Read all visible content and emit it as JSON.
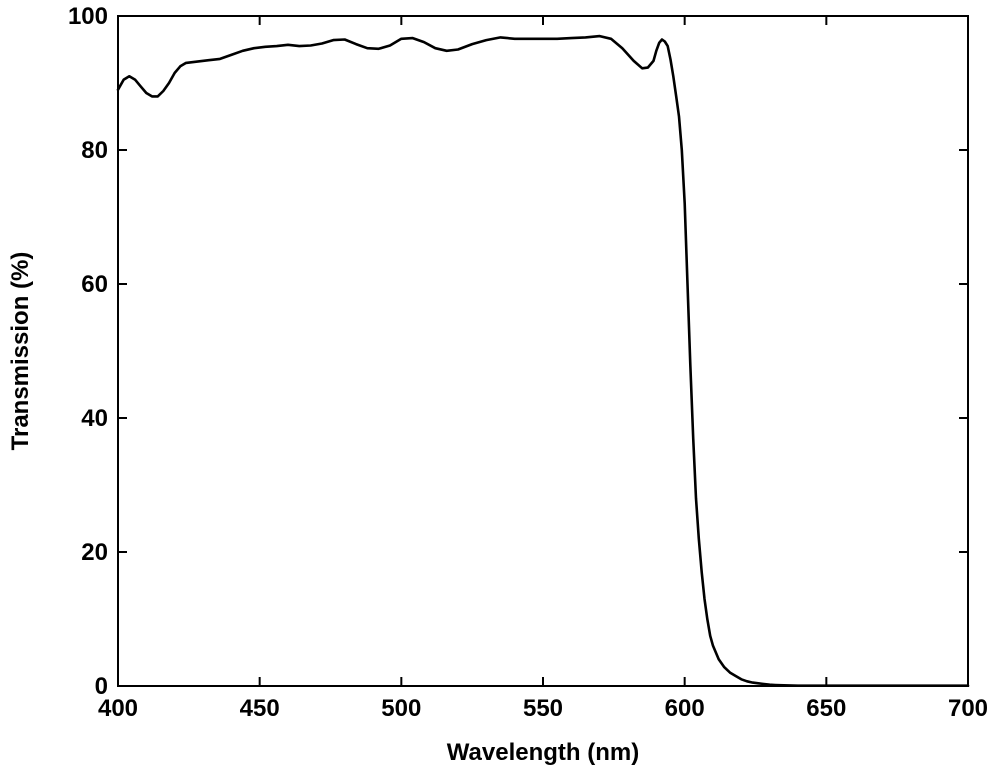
{
  "chart_data": {
    "type": "line",
    "title": "",
    "xlabel": "Wavelength (nm)",
    "ylabel": "Transmission (%)",
    "xlim": [
      400,
      700
    ],
    "ylim": [
      0,
      100
    ],
    "xticks": [
      400,
      450,
      500,
      550,
      600,
      650,
      700
    ],
    "yticks": [
      0,
      20,
      40,
      60,
      80,
      100
    ],
    "grid": false,
    "legend": "none",
    "colors": {
      "line": "#000000",
      "axes": "#000000",
      "background": "#ffffff"
    },
    "series": [
      {
        "x": [
          400,
          402,
          404,
          406,
          408,
          410,
          412,
          414,
          416,
          418,
          420,
          422,
          424,
          428,
          432,
          436,
          440,
          444,
          448,
          452,
          456,
          460,
          464,
          468,
          472,
          476,
          480,
          484,
          488,
          492,
          496,
          500,
          504,
          508,
          512,
          516,
          520,
          525,
          530,
          535,
          540,
          545,
          550,
          555,
          560,
          565,
          570,
          574,
          578,
          582,
          585,
          587,
          589,
          590,
          591,
          592,
          593,
          594,
          595,
          596,
          597,
          598,
          599,
          600,
          601,
          602,
          603,
          604,
          605,
          606,
          607,
          608,
          609,
          610,
          612,
          614,
          616,
          618,
          620,
          622,
          624,
          626,
          628,
          630,
          632,
          635,
          640,
          650,
          660,
          680,
          700
        ],
        "y": [
          89,
          90.5,
          91,
          90.5,
          89.5,
          88.5,
          88,
          88,
          88.8,
          90,
          91.5,
          92.5,
          93,
          93.2,
          93.4,
          93.6,
          94.2,
          94.8,
          95.2,
          95.4,
          95.5,
          95.7,
          95.5,
          95.6,
          95.9,
          96.4,
          96.5,
          95.8,
          95.2,
          95.1,
          95.6,
          96.6,
          96.7,
          96.1,
          95.2,
          94.8,
          95,
          95.8,
          96.4,
          96.8,
          96.6,
          96.6,
          96.6,
          96.6,
          96.7,
          96.8,
          97,
          96.6,
          95.2,
          93.3,
          92.2,
          92.3,
          93.3,
          94.8,
          96,
          96.5,
          96.2,
          95.5,
          93.5,
          91,
          88,
          85,
          80,
          72,
          60,
          48,
          37,
          28,
          22,
          17,
          13,
          10,
          7.5,
          6,
          4,
          2.8,
          2,
          1.5,
          1,
          0.7,
          0.5,
          0.4,
          0.3,
          0.2,
          0.15,
          0.1,
          0.05,
          0.05,
          0.05,
          0.05,
          0.05
        ]
      }
    ]
  }
}
